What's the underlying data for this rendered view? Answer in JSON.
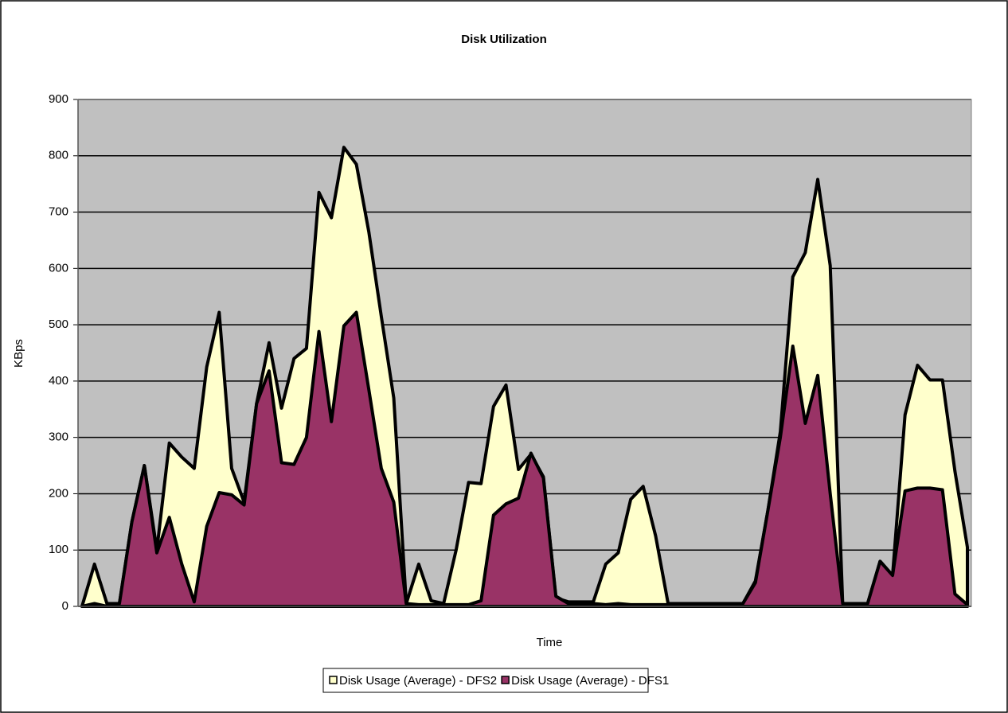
{
  "chart_data": {
    "type": "area",
    "title": "Disk Utilization",
    "ylabel": "KBps",
    "xlabel": "Time",
    "categories": [
      null,
      null,
      null,
      null,
      null,
      null,
      null,
      null,
      null,
      null,
      null,
      null,
      null,
      null,
      null,
      null,
      null,
      null,
      null,
      null,
      null,
      null,
      null,
      null,
      null,
      null,
      null,
      null,
      null,
      null,
      null,
      null,
      null,
      null,
      null,
      null,
      null,
      null,
      null,
      null,
      null,
      null,
      null,
      null,
      null,
      null,
      null,
      null,
      null,
      null,
      null,
      null,
      null,
      null,
      null,
      null,
      null,
      null,
      null,
      null,
      null,
      null,
      null,
      null,
      null,
      null,
      null,
      null,
      null,
      null,
      null,
      null
    ],
    "series": [
      {
        "name": "Disk Usage (Average) - DFS2",
        "color": "#ffffcc",
        "values": [
          0,
          75,
          5,
          5,
          150,
          250,
          100,
          290,
          265,
          245,
          425,
          522,
          245,
          185,
          360,
          468,
          352,
          440,
          458,
          735,
          690,
          815,
          785,
          665,
          515,
          370,
          5,
          75,
          10,
          5,
          100,
          220,
          218,
          355,
          393,
          243,
          270,
          230,
          15,
          8,
          8,
          8,
          75,
          95,
          190,
          213,
          125,
          5,
          5,
          5,
          5,
          5,
          5,
          5,
          45,
          170,
          310,
          585,
          628,
          758,
          605,
          5,
          5,
          5,
          80,
          55,
          340,
          428,
          402,
          402,
          240,
          105
        ]
      },
      {
        "name": "Disk Usage (Average) - DFS1",
        "color": "#993366",
        "values": [
          0,
          5,
          0,
          5,
          150,
          250,
          95,
          158,
          75,
          8,
          142,
          202,
          198,
          180,
          360,
          418,
          255,
          252,
          300,
          488,
          328,
          498,
          522,
          385,
          245,
          185,
          5,
          3,
          3,
          3,
          3,
          3,
          10,
          162,
          182,
          192,
          272,
          228,
          18,
          5,
          5,
          5,
          3,
          5,
          3,
          3,
          3,
          3,
          5,
          5,
          5,
          5,
          5,
          5,
          42,
          170,
          300,
          462,
          325,
          410,
          200,
          5,
          5,
          5,
          80,
          55,
          205,
          210,
          210,
          207,
          22,
          3
        ]
      }
    ],
    "ylim": [
      0,
      900
    ],
    "yticks": [
      0,
      100,
      200,
      300,
      400,
      500,
      600,
      700,
      800,
      900
    ],
    "grid": true,
    "legend": "bottom"
  }
}
